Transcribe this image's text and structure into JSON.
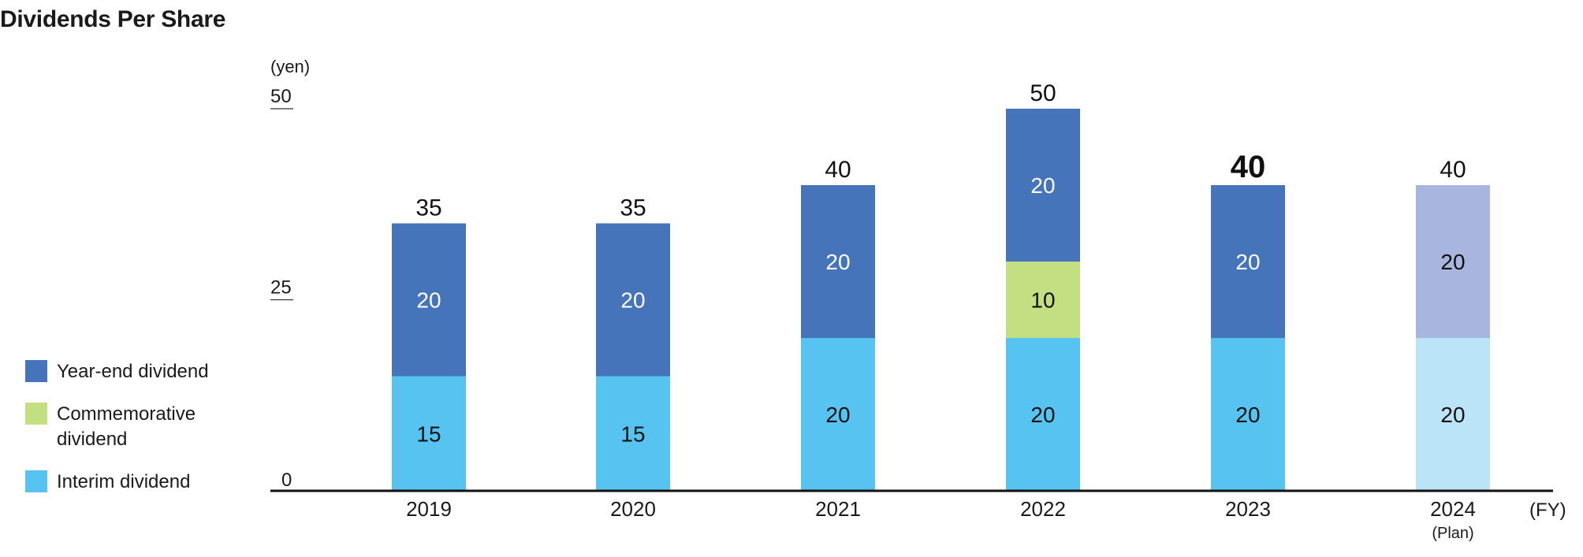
{
  "title": "Dividends Per Share",
  "legend": {
    "items": [
      {
        "label": "Year-end dividend",
        "color": "#4674bb"
      },
      {
        "label": "Commemorative dividend",
        "color": "#c4de82"
      },
      {
        "label": "Interim dividend",
        "color": "#56c3f0"
      }
    ]
  },
  "chart_data": {
    "type": "bar",
    "stacked": true,
    "title": "Dividends Per Share",
    "ylabel": "(yen)",
    "xlabel": "(FY)",
    "ylim": [
      0,
      50
    ],
    "yticks": [
      0,
      25,
      50
    ],
    "categories": [
      "2019",
      "2020",
      "2021",
      "2022",
      "2023",
      "2024"
    ],
    "category_sublabels": [
      "",
      "",
      "",
      "",
      "",
      "(Plan)"
    ],
    "series": [
      {
        "name": "Interim dividend",
        "values": [
          15,
          15,
          20,
          20,
          20,
          20
        ],
        "color": "#56c3f0",
        "plan_color": "#bbe4f8"
      },
      {
        "name": "Commemorative dividend",
        "values": [
          0,
          0,
          0,
          10,
          0,
          0
        ],
        "color": "#c4de82",
        "plan_color": "#c4de82"
      },
      {
        "name": "Year-end dividend",
        "values": [
          20,
          20,
          20,
          20,
          20,
          20
        ],
        "color": "#4674bb",
        "plan_color": "#a8b5df"
      }
    ],
    "totals": [
      35,
      35,
      40,
      50,
      40,
      40
    ],
    "highlight_category": "2023",
    "plan_category": "2024",
    "grid": false,
    "legend_position": "left"
  }
}
